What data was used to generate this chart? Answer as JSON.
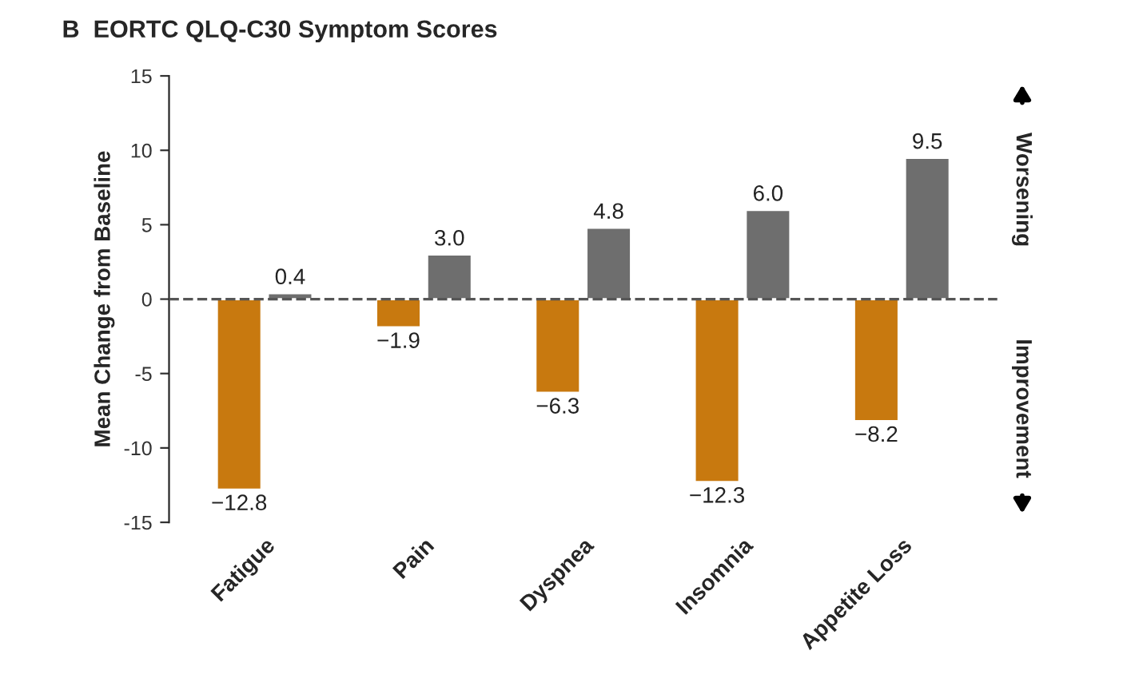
{
  "chart_data": {
    "type": "bar",
    "title": "B  EORTC QLQ-C30 Symptom Scores",
    "ylabel": "Mean Change from Baseline",
    "categories": [
      "Fatigue",
      "Pain",
      "Dyspnea",
      "Insomnia",
      "Appetite Loss"
    ],
    "series": [
      {
        "color": "#c8790f",
        "values": [
          -12.8,
          -1.9,
          -6.3,
          -12.3,
          -8.2
        ],
        "value_labels": [
          "−12.8",
          "−1.9",
          "−6.3",
          "−12.3",
          "−8.2"
        ]
      },
      {
        "color": "#6e6e6e",
        "values": [
          0.4,
          3.0,
          4.8,
          6.0,
          9.5
        ],
        "value_labels": [
          "0.4",
          "3.0",
          "4.8",
          "6.0",
          "9.5"
        ]
      }
    ],
    "ylim": [
      -15,
      15
    ],
    "yticks": [
      -15,
      -10,
      -5,
      0,
      5,
      10,
      15
    ],
    "ref_lines": [
      {
        "axis": "y",
        "value": 0,
        "line_style": "dashed",
        "color": "#555555"
      }
    ],
    "annotations": [
      "Worsening",
      "Improvement"
    ],
    "grid": false,
    "legend": false
  }
}
